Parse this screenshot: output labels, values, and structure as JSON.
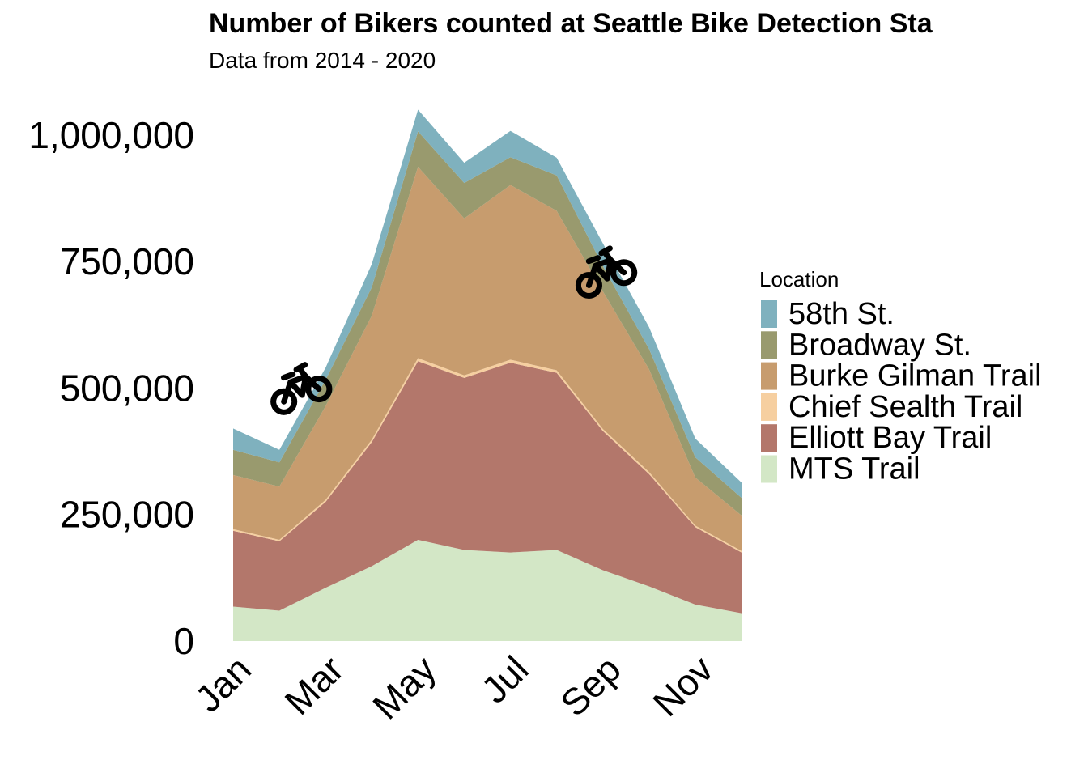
{
  "chart_data": {
    "type": "area",
    "stacked": true,
    "title": "Number of Bikers counted at Seattle Bike Detection Sta",
    "subtitle": "Data from 2014 - 2020",
    "xlabel": "",
    "ylabel": "",
    "x": [
      1,
      2,
      3,
      4,
      5,
      6,
      7,
      8,
      9,
      10,
      11,
      12
    ],
    "x_ticks": [
      {
        "value": 1,
        "label": "Jan"
      },
      {
        "value": 3,
        "label": "Mar"
      },
      {
        "value": 5,
        "label": "May"
      },
      {
        "value": 7,
        "label": "Jul"
      },
      {
        "value": 9,
        "label": "Sep"
      },
      {
        "value": 11,
        "label": "Nov"
      }
    ],
    "xlim": [
      1,
      12
    ],
    "ylim": [
      0,
      1050000
    ],
    "y_ticks": [
      {
        "value": 0,
        "label": "0"
      },
      {
        "value": 250000,
        "label": "250,000"
      },
      {
        "value": 500000,
        "label": "500,000"
      },
      {
        "value": 750000,
        "label": "750,000"
      },
      {
        "value": 1000000,
        "label": "1,000,000"
      }
    ],
    "grid": false,
    "legend": {
      "title": "Location",
      "position": "right"
    },
    "series": [
      {
        "name": "MTS Trail",
        "color": "#d3e7c6",
        "values": [
          68000,
          60000,
          105000,
          148000,
          200000,
          180000,
          175000,
          180000,
          140000,
          108000,
          72000,
          55000
        ]
      },
      {
        "name": "Elliott Bay Trail",
        "color": "#b3776b",
        "values": [
          150000,
          137000,
          170000,
          245000,
          353000,
          340000,
          375000,
          350000,
          275000,
          222000,
          153000,
          120000
        ]
      },
      {
        "name": "Chief Sealth Trail",
        "color": "#f6cfa0",
        "values": [
          3000,
          3000,
          4000,
          5000,
          6000,
          5000,
          6000,
          5000,
          4000,
          4000,
          3000,
          3000
        ]
      },
      {
        "name": "Burke Gilman Trail",
        "color": "#c79c6e",
        "values": [
          107000,
          105000,
          185000,
          245000,
          378000,
          310000,
          345000,
          315000,
          272000,
          203000,
          95000,
          70000
        ]
      },
      {
        "name": "Broadway St.",
        "color": "#999a6e",
        "values": [
          50000,
          48000,
          52000,
          56000,
          70000,
          70000,
          55000,
          70000,
          50000,
          40000,
          40000,
          35000
        ]
      },
      {
        "name": "58th St.",
        "color": "#7fb1be",
        "values": [
          42000,
          25000,
          24000,
          46000,
          43000,
          40000,
          52000,
          35000,
          45000,
          43000,
          37000,
          30000
        ]
      }
    ],
    "legend_order": [
      "58th St.",
      "Broadway St.",
      "Burke Gilman Trail",
      "Chief Sealth Trail",
      "Elliott Bay Trail",
      "MTS Trail"
    ],
    "annotations": [
      {
        "type": "bicycle-icon",
        "x": 2.4,
        "y": 500000
      },
      {
        "type": "bicycle-icon",
        "x": 9.0,
        "y": 730000
      }
    ]
  }
}
